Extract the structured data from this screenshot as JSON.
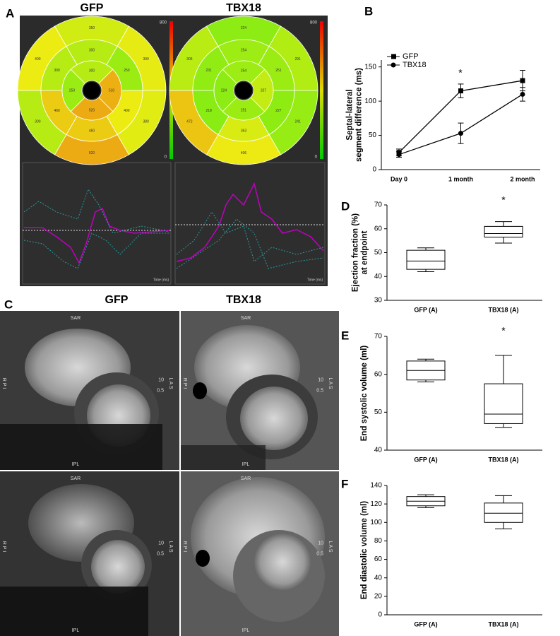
{
  "panel_labels": [
    "A",
    "B",
    "C",
    "D",
    "E",
    "F"
  ],
  "panel_a": {
    "colorbar": {
      "max": 800,
      "min": 0
    },
    "trace_xlabel": "Time (ms)",
    "plots": [
      {
        "title": "GFP",
        "outer": [
          350,
          390,
          380,
          520,
          300,
          400
        ],
        "middle": [
          300,
          250,
          400,
          460,
          460,
          300
        ],
        "inner": [
          300,
          510,
          520,
          250
        ]
      },
      {
        "title": "TBX18",
        "outer": [
          224,
          291,
          241,
          406,
          472,
          306
        ],
        "middle": [
          254,
          251,
          227,
          363,
          218,
          231
        ],
        "inner": [
          254,
          327,
          251,
          224
        ]
      }
    ]
  },
  "panel_c": {
    "titles": [
      "GFP",
      "TBX18"
    ],
    "top_label": "SAR",
    "bottom_label": "IPL",
    "left_label": "R P I",
    "right_label": "L A S",
    "scale": [
      "10",
      "0.5"
    ]
  },
  "chart_data": [
    {
      "type": "line",
      "ylabel": [
        "Septal-lateral",
        "segment difference (ms)"
      ],
      "categories": [
        "Day 0",
        "1 month",
        "2 month"
      ],
      "series": [
        {
          "name": "GFP",
          "marker": "square",
          "color": "#000000",
          "values": [
            25,
            115,
            130
          ],
          "errors": [
            5,
            10,
            15
          ]
        },
        {
          "name": "TBX18",
          "marker": "circle",
          "color": "#000000",
          "values": [
            22,
            53,
            110
          ],
          "errors": [
            4,
            15,
            10
          ]
        }
      ],
      "ylim": [
        0,
        160
      ],
      "yticks": [
        0,
        50,
        100,
        150
      ],
      "annotation": "*"
    },
    {
      "type": "box",
      "ylabel": [
        "Ejection fraction (%)",
        "at endpoint"
      ],
      "categories": [
        "GFP (A)",
        "TBX18 (A)"
      ],
      "boxes": [
        {
          "min": 42,
          "q1": 43,
          "median": 46.5,
          "q3": 51,
          "max": 52
        },
        {
          "min": 54,
          "q1": 56.5,
          "median": 58,
          "q3": 61,
          "max": 63
        }
      ],
      "ylim": [
        30,
        70
      ],
      "yticks": [
        30,
        40,
        50,
        60,
        70
      ],
      "annotation": "*"
    },
    {
      "type": "box",
      "ylabel": [
        "End systolic volume (ml)"
      ],
      "categories": [
        "GFP (A)",
        "TBX18 (A)"
      ],
      "boxes": [
        {
          "min": 58,
          "q1": 58.5,
          "median": 61,
          "q3": 63.5,
          "max": 64
        },
        {
          "min": 46,
          "q1": 47,
          "median": 49.5,
          "q3": 57.5,
          "max": 65
        }
      ],
      "ylim": [
        40,
        70
      ],
      "yticks": [
        40,
        50,
        60,
        70
      ],
      "annotation": "*"
    },
    {
      "type": "box",
      "ylabel": [
        "End diastolic volume (ml)"
      ],
      "categories": [
        "GFP (A)",
        "TBX18 (A)"
      ],
      "boxes": [
        {
          "min": 116,
          "q1": 118,
          "median": 123,
          "q3": 128,
          "max": 130
        },
        {
          "min": 93,
          "q1": 100,
          "median": 110,
          "q3": 121,
          "max": 129
        }
      ],
      "ylim": [
        0,
        140
      ],
      "yticks": [
        0,
        20,
        40,
        60,
        80,
        100,
        120,
        140
      ]
    }
  ]
}
